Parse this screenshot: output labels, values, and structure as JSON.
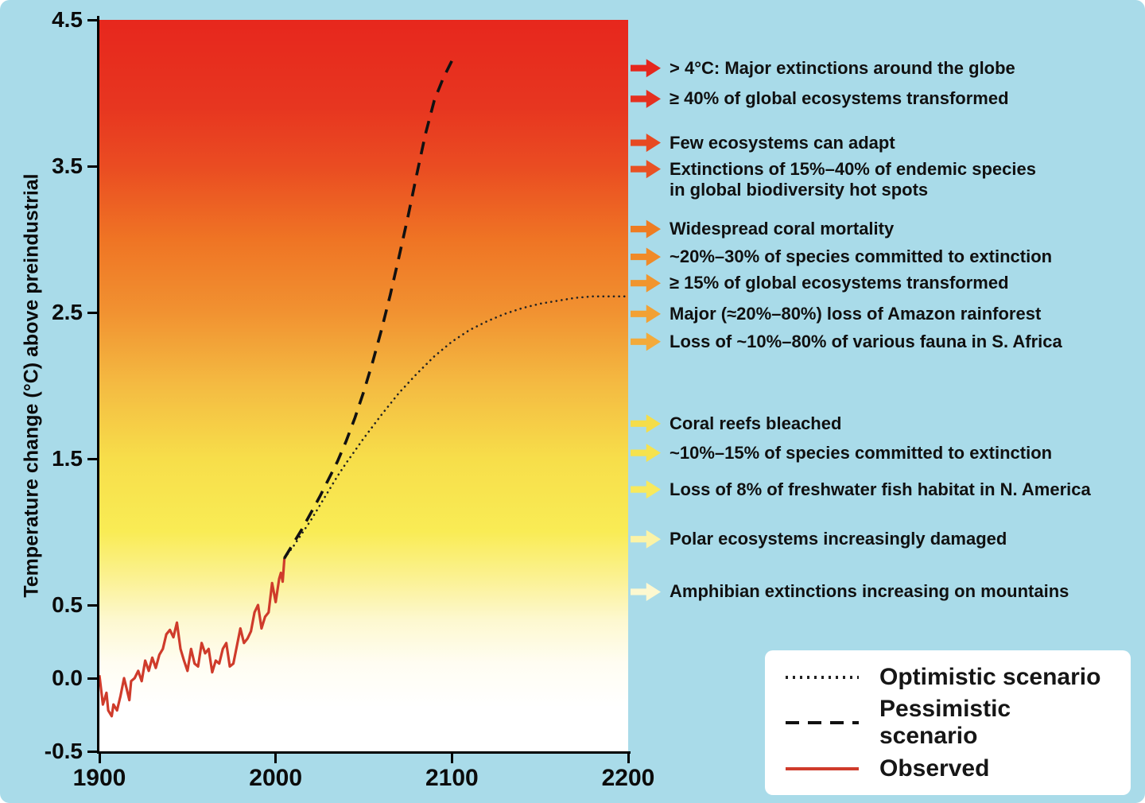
{
  "page": {
    "background_color": "#a9dbe9"
  },
  "chart": {
    "y_axis_label": "Temperature change (°C) above preindustrial",
    "y_ticks": [
      4.5,
      3.5,
      2.5,
      1.5,
      0.5,
      0.0,
      -0.5
    ],
    "x_ticks": [
      1900,
      2000,
      2100,
      2200
    ]
  },
  "chart_data": {
    "type": "line",
    "title": "",
    "ylabel": "Temperature change (°C) above preindustrial",
    "xlim": [
      1900,
      2200
    ],
    "ylim": [
      -0.5,
      4.5
    ],
    "grid": false,
    "legend_position": "bottom-right",
    "series": [
      {
        "name": "Observed",
        "style": "solid",
        "color": "#cf3b2b",
        "points": [
          [
            1900,
            0.02
          ],
          [
            1901,
            -0.08
          ],
          [
            1902,
            -0.18
          ],
          [
            1904,
            -0.1
          ],
          [
            1905,
            -0.22
          ],
          [
            1907,
            -0.26
          ],
          [
            1908,
            -0.18
          ],
          [
            1910,
            -0.22
          ],
          [
            1912,
            -0.12
          ],
          [
            1914,
            0.0
          ],
          [
            1915,
            -0.05
          ],
          [
            1917,
            -0.15
          ],
          [
            1918,
            -0.02
          ],
          [
            1920,
            0.0
          ],
          [
            1922,
            0.05
          ],
          [
            1924,
            -0.02
          ],
          [
            1926,
            0.12
          ],
          [
            1928,
            0.05
          ],
          [
            1930,
            0.14
          ],
          [
            1932,
            0.07
          ],
          [
            1934,
            0.16
          ],
          [
            1936,
            0.2
          ],
          [
            1938,
            0.3
          ],
          [
            1940,
            0.33
          ],
          [
            1942,
            0.28
          ],
          [
            1944,
            0.38
          ],
          [
            1946,
            0.2
          ],
          [
            1948,
            0.12
          ],
          [
            1950,
            0.05
          ],
          [
            1952,
            0.2
          ],
          [
            1954,
            0.1
          ],
          [
            1956,
            0.08
          ],
          [
            1958,
            0.24
          ],
          [
            1960,
            0.17
          ],
          [
            1962,
            0.2
          ],
          [
            1964,
            0.04
          ],
          [
            1966,
            0.12
          ],
          [
            1968,
            0.1
          ],
          [
            1970,
            0.2
          ],
          [
            1972,
            0.24
          ],
          [
            1974,
            0.08
          ],
          [
            1976,
            0.1
          ],
          [
            1978,
            0.22
          ],
          [
            1980,
            0.34
          ],
          [
            1982,
            0.24
          ],
          [
            1984,
            0.27
          ],
          [
            1986,
            0.32
          ],
          [
            1988,
            0.45
          ],
          [
            1990,
            0.5
          ],
          [
            1992,
            0.34
          ],
          [
            1994,
            0.42
          ],
          [
            1996,
            0.45
          ],
          [
            1998,
            0.65
          ],
          [
            2000,
            0.52
          ],
          [
            2002,
            0.68
          ],
          [
            2003,
            0.72
          ],
          [
            2004,
            0.66
          ],
          [
            2005,
            0.82
          ]
        ]
      },
      {
        "name": "Optimistic scenario",
        "style": "dotted",
        "color": "#222222",
        "points": [
          [
            2005,
            0.82
          ],
          [
            2010,
            0.9
          ],
          [
            2015,
            0.99
          ],
          [
            2020,
            1.08
          ],
          [
            2025,
            1.18
          ],
          [
            2030,
            1.28
          ],
          [
            2035,
            1.38
          ],
          [
            2040,
            1.47
          ],
          [
            2050,
            1.64
          ],
          [
            2060,
            1.8
          ],
          [
            2070,
            1.95
          ],
          [
            2080,
            2.08
          ],
          [
            2090,
            2.2
          ],
          [
            2100,
            2.3
          ],
          [
            2110,
            2.38
          ],
          [
            2120,
            2.44
          ],
          [
            2130,
            2.49
          ],
          [
            2140,
            2.53
          ],
          [
            2150,
            2.56
          ],
          [
            2160,
            2.58
          ],
          [
            2170,
            2.6
          ],
          [
            2180,
            2.61
          ],
          [
            2200,
            2.61
          ]
        ]
      },
      {
        "name": "Pessimistic scenario",
        "style": "dashed",
        "color": "#111111",
        "points": [
          [
            2005,
            0.82
          ],
          [
            2010,
            0.92
          ],
          [
            2015,
            1.02
          ],
          [
            2020,
            1.13
          ],
          [
            2025,
            1.24
          ],
          [
            2030,
            1.36
          ],
          [
            2035,
            1.48
          ],
          [
            2040,
            1.62
          ],
          [
            2045,
            1.78
          ],
          [
            2050,
            1.96
          ],
          [
            2055,
            2.16
          ],
          [
            2060,
            2.38
          ],
          [
            2065,
            2.62
          ],
          [
            2070,
            2.88
          ],
          [
            2075,
            3.15
          ],
          [
            2080,
            3.44
          ],
          [
            2085,
            3.72
          ],
          [
            2090,
            3.95
          ],
          [
            2095,
            4.1
          ],
          [
            2100,
            4.22
          ]
        ]
      }
    ]
  },
  "annotations": [
    {
      "temp": 4.17,
      "color": "#e5271d",
      "label": "> 4°C: Major extinctions around the globe"
    },
    {
      "temp": 3.96,
      "color": "#e5301f",
      "label": "≥ 40% of global ecosystems transformed"
    },
    {
      "temp": 3.66,
      "color": "#e74a22",
      "label": "Few ecosystems can adapt"
    },
    {
      "temp": 3.48,
      "color": "#e85124",
      "label": "Extinctions of 15%–40% of endemic species\nin global biodiversity hot spots"
    },
    {
      "temp": 3.07,
      "color": "#ee7c22",
      "label": "Widespread coral mortality"
    },
    {
      "temp": 2.88,
      "color": "#f08a28",
      "label": "~20%–30% of species committed to extinction"
    },
    {
      "temp": 2.7,
      "color": "#f1952d",
      "label": "≥ 15% of global ecosystems transformed"
    },
    {
      "temp": 2.49,
      "color": "#f2a134",
      "label": "Major (≈20%–80%) loss of Amazon rainforest"
    },
    {
      "temp": 2.3,
      "color": "#f3aa3a",
      "label": "Loss of ~10%–80% of various fauna in S. Africa"
    },
    {
      "temp": 1.74,
      "color": "#f5dd4a",
      "label": "Coral reefs bleached"
    },
    {
      "temp": 1.54,
      "color": "#f6e24e",
      "label": "~10%–15% of species committed to extinction"
    },
    {
      "temp": 1.29,
      "color": "#f8e95c",
      "label": "Loss of 8% of freshwater fish habitat in N. America"
    },
    {
      "temp": 0.95,
      "color": "#fbf3a6",
      "label": "Polar ecosystems increasingly damaged"
    },
    {
      "temp": 0.59,
      "color": "#fdf8d0",
      "label": "Amphibian extinctions increasing on mountains"
    }
  ],
  "legend": {
    "items": [
      {
        "style": "dotted",
        "color": "#222222",
        "label": "Optimistic scenario"
      },
      {
        "style": "dashed",
        "color": "#111111",
        "label": "Pessimistic scenario"
      },
      {
        "style": "solid",
        "color": "#cf3b2b",
        "label": "Observed"
      }
    ]
  }
}
